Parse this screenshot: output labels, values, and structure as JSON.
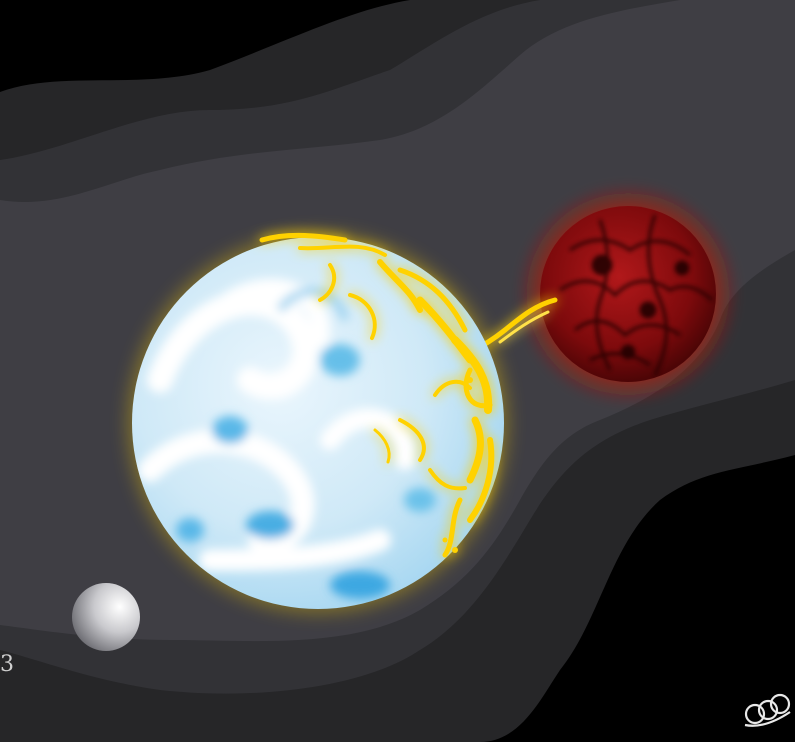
{
  "illustration": {
    "subject": "stellar-mass-transfer",
    "colors": {
      "background": "#000000",
      "band_outer": "#262628",
      "band_middle": "#323236",
      "band_inner": "#3f3e44",
      "white_dwarf_light": "#ffffff",
      "white_dwarf_blue": "#5ab8e8",
      "accretion_glow": "#ffd200",
      "red_star": "#8e0f10",
      "red_star_dark": "#2a0203",
      "moon": "#b8b8bc"
    },
    "edge_text": "3",
    "edge_text_color": "#cfcfcf",
    "signature_color": "#e8e8e8"
  }
}
